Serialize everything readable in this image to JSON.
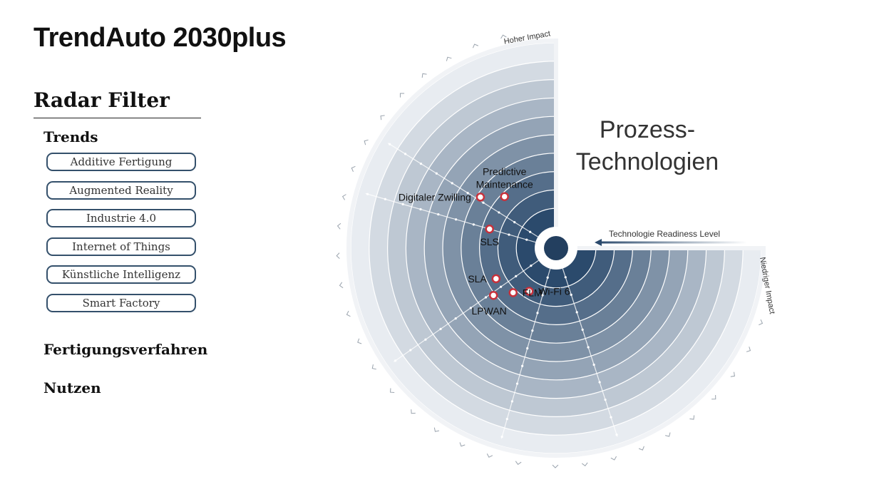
{
  "app": {
    "title": "TrendAuto 2030plus"
  },
  "sidebar": {
    "heading": "Radar Filter",
    "sections": [
      {
        "title": "Trends",
        "chips": [
          "Additive Fertigung",
          "Augmented Reality",
          "Industrie 4.0",
          "Internet of Things",
          "Künstliche Intelligenz",
          "Smart Factory"
        ]
      },
      {
        "title": "Fertigungsverfahren"
      },
      {
        "title": "Nutzen"
      }
    ]
  },
  "radar": {
    "title_line1": "Prozess-",
    "title_line2": "Technologien",
    "axis_high_impact": "Hoher Impact",
    "axis_low_impact": "Niedriger Impact",
    "axis_trl": "Technologie Readiness Level",
    "ring_count": 10,
    "colors": {
      "ring_light": "#e8ecf1",
      "ring_dark": "#2b4a6c",
      "marker_fill": "#ffffff",
      "marker_stroke": "#c8313b",
      "center": "#233f5f"
    },
    "items": [
      {
        "label": "Predictive Maintenance",
        "lines": [
          "Predictive",
          "Maintenance"
        ],
        "trl": 2.8,
        "angle_deg": 225
      },
      {
        "label": "Digitaler Zwilling",
        "lines": [
          "Digitaler Zwilling"
        ],
        "trl": 3.8,
        "angle_deg": 214
      },
      {
        "label": "SLS",
        "lines": [
          "SLS"
        ],
        "trl": 2.6,
        "angle_deg": 196
      },
      {
        "label": "SLA",
        "lines": [
          "SLA"
        ],
        "trl": 2.5,
        "angle_deg": 153
      },
      {
        "label": "Wi-Fi 6",
        "lines": [
          "Wi-Fi 6"
        ],
        "trl": 1.6,
        "angle_deg": 122
      },
      {
        "label": "FLM",
        "lines": [
          "FLM"
        ],
        "trl": 2.2,
        "angle_deg": 134
      },
      {
        "label": "LPWAN",
        "lines": [
          "LPWAN"
        ],
        "trl": 3.1,
        "angle_deg": 143
      }
    ]
  }
}
